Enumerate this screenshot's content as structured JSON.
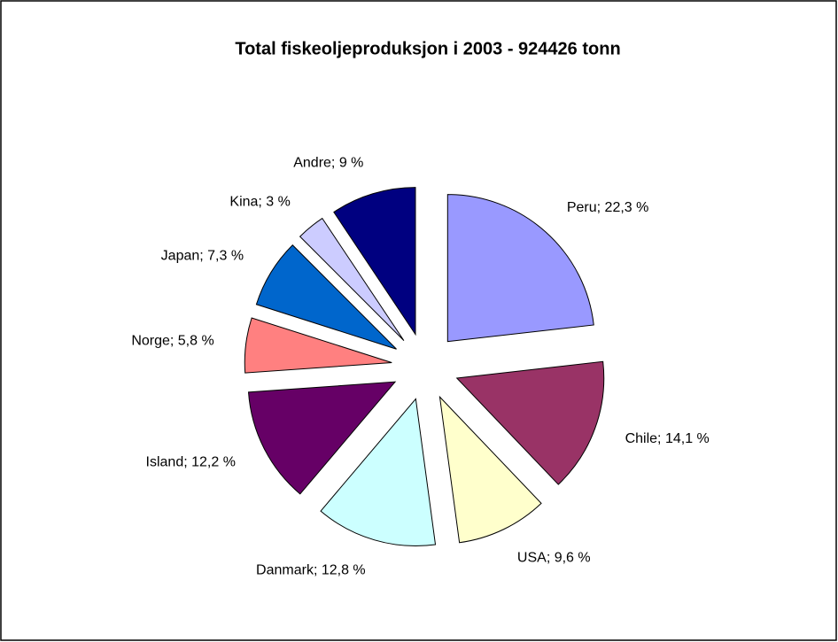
{
  "chart_data": {
    "type": "pie",
    "title": "Total fiskeoljeproduksjon i 2003 - 924426 tonn",
    "labels": [
      "Peru; 22,3 %",
      "Chile; 14,1 %",
      "USA; 9,6 %",
      "Danmark; 12,8 %",
      "Island; 12,2 %",
      "Norge; 5,8 %",
      "Japan; 7,3 %",
      "Kina; 3 %",
      "Andre; 9 %"
    ],
    "values": [
      22.3,
      14.1,
      9.6,
      12.8,
      12.2,
      5.8,
      7.3,
      3,
      9
    ],
    "colors": [
      "#9999ff",
      "#993366",
      "#ffffcc",
      "#ccffff",
      "#660066",
      "#ff8080",
      "#0066cc",
      "#ccccff",
      "#000080"
    ]
  }
}
